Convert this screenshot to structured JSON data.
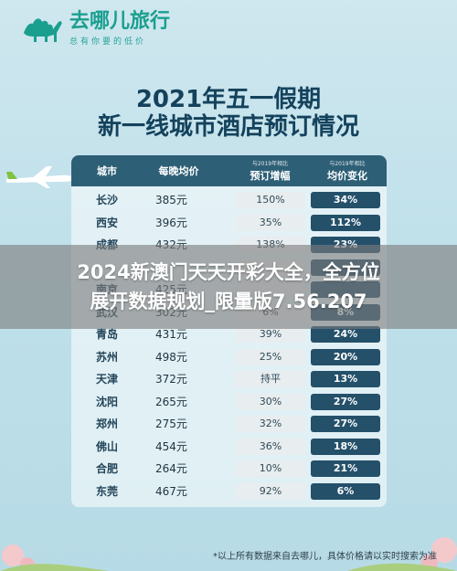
{
  "brand": {
    "name": "去哪儿旅行",
    "slogan": "总有你要的低价"
  },
  "title": {
    "line1": "2021年五一假期",
    "line2": "新一线城市酒店预订情况"
  },
  "headers": {
    "city": "城市",
    "price": "每晚均价",
    "booking_sub": "与2019年相比",
    "booking": "预订增幅",
    "avg_sub": "与2019年相比",
    "avg": "均价变化"
  },
  "rows": [
    {
      "city": "长沙",
      "price": "385元",
      "booking": "150%",
      "avg": "34%"
    },
    {
      "city": "西安",
      "price": "396元",
      "booking": "35%",
      "avg": "112%"
    },
    {
      "city": "成都",
      "price": "432元",
      "booking": "138%",
      "avg": "23%"
    },
    {
      "city": "",
      "price": "",
      "booking": "",
      "avg": ""
    },
    {
      "city": "南京",
      "price": "425元",
      "booking": "",
      "avg": ""
    },
    {
      "city": "武汉",
      "price": "302元",
      "booking": "6%",
      "avg": "8%"
    },
    {
      "city": "青岛",
      "price": "431元",
      "booking": "39%",
      "avg": "24%"
    },
    {
      "city": "苏州",
      "price": "498元",
      "booking": "25%",
      "avg": "20%"
    },
    {
      "city": "天津",
      "price": "372元",
      "booking": "持平",
      "avg": "13%"
    },
    {
      "city": "沈阳",
      "price": "265元",
      "booking": "30%",
      "avg": "27%"
    },
    {
      "city": "郑州",
      "price": "275元",
      "booking": "32%",
      "avg": "27%"
    },
    {
      "city": "佛山",
      "price": "454元",
      "booking": "36%",
      "avg": "18%"
    },
    {
      "city": "合肥",
      "price": "264元",
      "booking": "10%",
      "avg": "21%"
    },
    {
      "city": "东莞",
      "price": "467元",
      "booking": "92%",
      "avg": "6%"
    }
  ],
  "overlay": {
    "line1": "2024新澳门天天开彩大全，全方位",
    "line2": "展开数据规划_限量版7.56.207"
  },
  "footnote": "*以上所有数据来自去哪儿，具体价格请以实时搜索为准",
  "colors": {
    "brand": "#1a9f8f",
    "header": "#2d5f76",
    "avg_pill": "#24506a",
    "title": "#14425c"
  }
}
